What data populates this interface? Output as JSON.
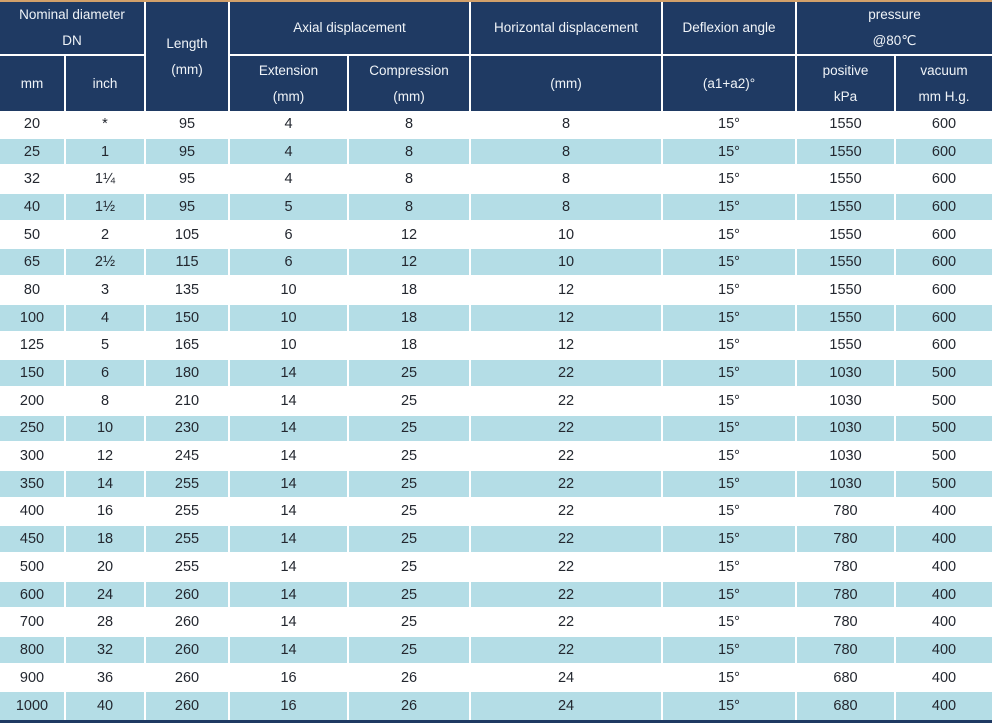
{
  "table": {
    "header": {
      "nominal_diameter": [
        "Nominal diameter",
        "DN"
      ],
      "mm": "mm",
      "inch": "inch",
      "length": [
        "Length",
        "(mm)"
      ],
      "axial": "Axial displacement",
      "extension": [
        "Extension",
        "(mm)"
      ],
      "compression": [
        "Compression",
        "(mm)"
      ],
      "horizontal": "Horizontal displacement",
      "horizontal_unit": "(mm)",
      "deflexion": "Deflexion angle",
      "deflexion_unit": "(a1+a2)°",
      "pressure": [
        "pressure",
        "@80℃"
      ],
      "positive": [
        "positive",
        "kPa"
      ],
      "vacuum": [
        "vacuum",
        "mm H.g."
      ]
    },
    "columns": [
      "mm",
      "inch",
      "Length (mm)",
      "Extension (mm)",
      "Compression (mm)",
      "Horizontal displacement (mm)",
      "Deflexion angle (a1+a2)°",
      "positive kPa",
      "vacuum mm H.g."
    ],
    "rows": [
      [
        "20",
        "*",
        "95",
        "4",
        "8",
        "8",
        "15°",
        "1550",
        "600"
      ],
      [
        "25",
        "1",
        "95",
        "4",
        "8",
        "8",
        "15°",
        "1550",
        "600"
      ],
      [
        "32",
        "1¼",
        "95",
        "4",
        "8",
        "8",
        "15°",
        "1550",
        "600"
      ],
      [
        "40",
        "1½",
        "95",
        "5",
        "8",
        "8",
        "15°",
        "1550",
        "600"
      ],
      [
        "50",
        "2",
        "105",
        "6",
        "12",
        "10",
        "15°",
        "1550",
        "600"
      ],
      [
        "65",
        "2½",
        "115",
        "6",
        "12",
        "10",
        "15°",
        "1550",
        "600"
      ],
      [
        "80",
        "3",
        "135",
        "10",
        "18",
        "12",
        "15°",
        "1550",
        "600"
      ],
      [
        "100",
        "4",
        "150",
        "10",
        "18",
        "12",
        "15°",
        "1550",
        "600"
      ],
      [
        "125",
        "5",
        "165",
        "10",
        "18",
        "12",
        "15°",
        "1550",
        "600"
      ],
      [
        "150",
        "6",
        "180",
        "14",
        "25",
        "22",
        "15°",
        "1030",
        "500"
      ],
      [
        "200",
        "8",
        "210",
        "14",
        "25",
        "22",
        "15°",
        "1030",
        "500"
      ],
      [
        "250",
        "10",
        "230",
        "14",
        "25",
        "22",
        "15°",
        "1030",
        "500"
      ],
      [
        "300",
        "12",
        "245",
        "14",
        "25",
        "22",
        "15°",
        "1030",
        "500"
      ],
      [
        "350",
        "14",
        "255",
        "14",
        "25",
        "22",
        "15°",
        "1030",
        "500"
      ],
      [
        "400",
        "16",
        "255",
        "14",
        "25",
        "22",
        "15°",
        "780",
        "400"
      ],
      [
        "450",
        "18",
        "255",
        "14",
        "25",
        "22",
        "15°",
        "780",
        "400"
      ],
      [
        "500",
        "20",
        "255",
        "14",
        "25",
        "22",
        "15°",
        "780",
        "400"
      ],
      [
        "600",
        "24",
        "260",
        "14",
        "25",
        "22",
        "15°",
        "780",
        "400"
      ],
      [
        "700",
        "28",
        "260",
        "14",
        "25",
        "22",
        "15°",
        "780",
        "400"
      ],
      [
        "800",
        "32",
        "260",
        "14",
        "25",
        "22",
        "15°",
        "780",
        "400"
      ],
      [
        "900",
        "36",
        "260",
        "16",
        "26",
        "24",
        "15°",
        "680",
        "400"
      ],
      [
        "1000",
        "40",
        "260",
        "16",
        "26",
        "24",
        "15°",
        "680",
        "400"
      ]
    ]
  },
  "colors": {
    "header_bg": "#1f3a63",
    "row_alt_bg": "#b4dde6",
    "row_bg": "#ffffff",
    "top_border": "#d2a06a",
    "header_text": "#f0f4f8",
    "cell_text": "#23272f"
  }
}
